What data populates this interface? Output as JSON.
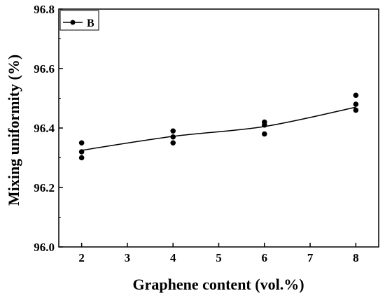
{
  "chart_data": {
    "type": "scatter",
    "title": "",
    "xlabel": "Graphene content (vol.%)",
    "ylabel": "Mixing uniformity (%)",
    "xlim": [
      1.5,
      8.5
    ],
    "ylim": [
      96.0,
      96.8
    ],
    "x_ticks": [
      "2",
      "3",
      "4",
      "5",
      "6",
      "7",
      "8"
    ],
    "y_ticks": [
      "96.0",
      "96.2",
      "96.4",
      "96.6",
      "96.8"
    ],
    "legend": {
      "position": "top-left",
      "entries": [
        "B"
      ]
    },
    "series": [
      {
        "name": "B",
        "color": "#000000",
        "points": [
          {
            "x": 2,
            "y": 96.35
          },
          {
            "x": 2,
            "y": 96.32
          },
          {
            "x": 2,
            "y": 96.3
          },
          {
            "x": 4,
            "y": 96.39
          },
          {
            "x": 4,
            "y": 96.37
          },
          {
            "x": 4,
            "y": 96.35
          },
          {
            "x": 6,
            "y": 96.42
          },
          {
            "x": 6,
            "y": 96.41
          },
          {
            "x": 6,
            "y": 96.38
          },
          {
            "x": 8,
            "y": 96.51
          },
          {
            "x": 8,
            "y": 96.48
          },
          {
            "x": 8,
            "y": 96.46
          }
        ],
        "fit_line": [
          {
            "x": 2,
            "y": 96.325
          },
          {
            "x": 4,
            "y": 96.372
          },
          {
            "x": 6,
            "y": 96.405
          },
          {
            "x": 8,
            "y": 96.47
          }
        ]
      }
    ],
    "grid": false
  }
}
